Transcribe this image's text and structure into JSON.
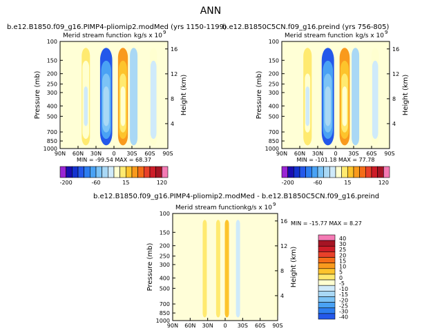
{
  "page_title": "ANN",
  "cmap_main": [
    "#9b25d4",
    "#1a0db0",
    "#1432cf",
    "#2458ea",
    "#2d7ef0",
    "#4aa2f4",
    "#7cc3f6",
    "#a9d8f5",
    "#cfeafa",
    "#ffffd0",
    "#ffea70",
    "#fdc42c",
    "#f99a1d",
    "#f46d18",
    "#e8412a",
    "#cd1d28",
    "#a51424",
    "#f47ab4"
  ],
  "cmap_diff": [
    "#f47ab4",
    "#a51424",
    "#cd1d28",
    "#e8412a",
    "#f46d18",
    "#f99a1d",
    "#fdc42c",
    "#ffea70",
    "#ffffd0",
    "#cfeafa",
    "#a9d8f5",
    "#7cc3f6",
    "#4aa2f4",
    "#2d7ef0",
    "#2458ea",
    "#1432cf",
    "#1a0db0",
    "#9b25d4"
  ],
  "chart_data": [
    {
      "type": "contour",
      "title": "b.e12.B1850.f09_g16.PIMP4-pliomip2.modMed (yrs 1150-1199)",
      "subtitle_left": "Merid stream function",
      "subtitle_right": "kg/s x 10",
      "subtitle_exp": "9",
      "ylabel": "Pressure (mb)",
      "ylabel_right": "Height (km)",
      "x_ticks": [
        "90N",
        "60N",
        "30N",
        "0",
        "30S",
        "60S",
        "90S"
      ],
      "y_ticks": [
        "100",
        "150",
        "200",
        "250",
        "300",
        "400",
        "500",
        "700",
        "850",
        "1000"
      ],
      "height_ticks": [
        "16",
        "12",
        "8",
        "4"
      ],
      "min_text": "MIN = -99.54   MAX =  68.37",
      "min": -99.54,
      "max": 68.37,
      "colorbar_labels": [
        "-200",
        "-60",
        "15",
        "120"
      ],
      "colorbar_levels": [
        -200,
        -160,
        -120,
        -100,
        -80,
        -60,
        -40,
        -20,
        -5,
        5,
        15,
        25,
        40,
        60,
        80,
        100,
        120,
        160
      ],
      "features": [
        {
          "lat": -66,
          "mean": 7,
          "peak": 7
        },
        {
          "lat": -33,
          "mean": -6,
          "peak": -11
        },
        {
          "lat": -15,
          "mean": 24,
          "peak": 48
        },
        {
          "lat": 13,
          "mean": -34,
          "peak": -85
        },
        {
          "lat": 47,
          "mean": 14,
          "peak": 22
        }
      ]
    },
    {
      "type": "contour",
      "title": "b.e12.B1850C5CN.f09_g16.preind (yrs 756-805)",
      "subtitle_left": "Merid stream function",
      "subtitle_right": "kg/s x 10",
      "subtitle_exp": "9",
      "ylabel": "Pressure (mb)",
      "ylabel_right": "Height (km)",
      "x_ticks": [
        "90N",
        "60N",
        "30N",
        "0",
        "30S",
        "60S",
        "90S"
      ],
      "y_ticks": [
        "100",
        "150",
        "200",
        "250",
        "300",
        "400",
        "500",
        "700",
        "850",
        "1000"
      ],
      "height_ticks": [
        "16",
        "12",
        "8",
        "4"
      ],
      "min_text": "MIN = -101.18   MAX =  77.78",
      "min": -101.18,
      "max": 77.78,
      "colorbar_labels": [
        "-200",
        "-60",
        "15",
        "120"
      ],
      "colorbar_levels": [
        -200,
        -160,
        -120,
        -100,
        -80,
        -60,
        -40,
        -20,
        -5,
        5,
        15,
        25,
        40,
        60,
        80,
        100,
        120,
        160
      ],
      "features": [
        {
          "lat": -66,
          "mean": 7,
          "peak": 7
        },
        {
          "lat": -33,
          "mean": -6,
          "peak": -11
        },
        {
          "lat": -15,
          "mean": 26,
          "peak": 52
        },
        {
          "lat": 13,
          "mean": -36,
          "peak": -88
        },
        {
          "lat": 47,
          "mean": 16,
          "peak": 24
        }
      ]
    },
    {
      "type": "contour",
      "title": "b.e12.B1850.f09_g16.PIMP4-pliomip2.modMed  -  b.e12.B1850C5CN.f09_g16.preind",
      "subtitle_left": "Merid stream function",
      "subtitle_right": "kg/s x 10",
      "subtitle_exp": "9",
      "ylabel": "Pressure (mb)",
      "ylabel_right": "Height (km)",
      "x_ticks": [
        "90N",
        "60N",
        "30N",
        "0",
        "30S",
        "60S",
        "90S"
      ],
      "y_ticks": [
        "100",
        "150",
        "200",
        "250",
        "300",
        "400",
        "500",
        "700",
        "850",
        "1000"
      ],
      "height_ticks": [
        "16",
        "12",
        "8",
        "4"
      ],
      "min_text": "MIN = -15.77   MAX =   8.27",
      "min": -15.77,
      "max": 8.27,
      "colorbar_labels": [
        "40",
        "30",
        "25",
        "20",
        "15",
        "10",
        "5",
        "0",
        "-5",
        "-10",
        "-15",
        "-20",
        "-25",
        "-30",
        "-40"
      ],
      "colorbar_levels": [
        40,
        30,
        25,
        20,
        15,
        10,
        5,
        0,
        -5,
        -10,
        -15,
        -20,
        -25,
        -30,
        -40
      ],
      "features": [
        {
          "lat": -88,
          "mean": 0,
          "peak": -4
        },
        {
          "lat": -22,
          "mean": 0,
          "peak": -8
        },
        {
          "lat": -3,
          "mean": 0,
          "peak": 6
        },
        {
          "lat": 12,
          "mean": -1,
          "peak": 4
        },
        {
          "lat": 35,
          "mean": 0,
          "peak": 3
        }
      ]
    }
  ]
}
